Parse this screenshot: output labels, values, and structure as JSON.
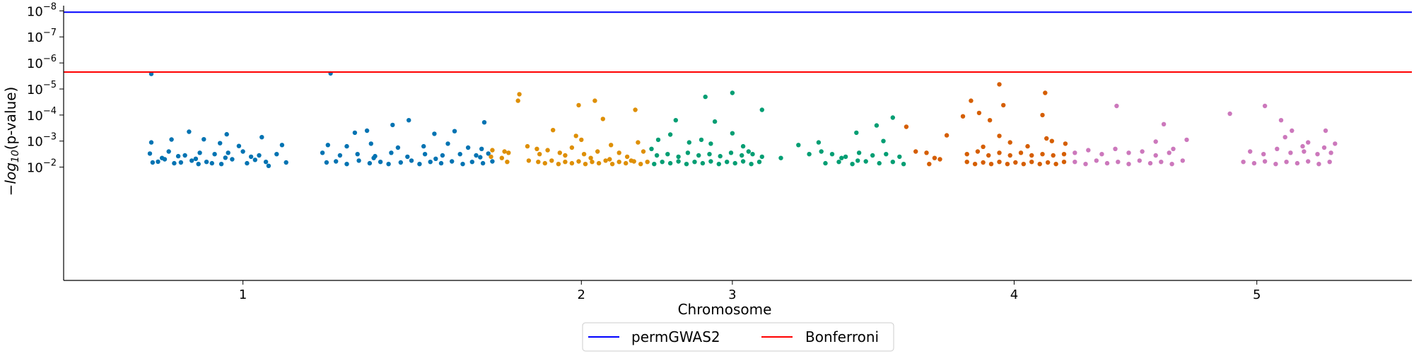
{
  "chart_data": {
    "type": "scatter",
    "title": "",
    "xlabel": "Chromosome",
    "ylabel_prefix": "−",
    "ylabel_log": "log",
    "ylabel_sub": "10",
    "ylabel_suffix": "(p-value)",
    "ylabel": "−log10(p-value)",
    "ylim": [
      -2.35,
      8.2
    ],
    "xlim": [
      0,
      100
    ],
    "x_ticks": [
      {
        "label": "1",
        "value": 13.3
      },
      {
        "label": "2",
        "value": 38.4
      },
      {
        "label": "3",
        "value": 49.6
      },
      {
        "label": "4",
        "value": 70.5
      },
      {
        "label": "5",
        "value": 88.5
      }
    ],
    "y_ticks": [
      {
        "value": 2,
        "base": "10",
        "exp": "−2"
      },
      {
        "value": 3,
        "base": "10",
        "exp": "−3"
      },
      {
        "value": 4,
        "base": "10",
        "exp": "−4"
      },
      {
        "value": 5,
        "base": "10",
        "exp": "−5"
      },
      {
        "value": 6,
        "base": "10",
        "exp": "−6"
      },
      {
        "value": 7,
        "base": "10",
        "exp": "−7"
      },
      {
        "value": 8,
        "base": "10",
        "exp": "−8"
      }
    ],
    "thresholds": [
      {
        "name": "permGWAS2",
        "value": 7.95,
        "color": "#0000ff"
      },
      {
        "name": "Bonferroni",
        "value": 5.65,
        "color": "#ff0000"
      }
    ],
    "legend": {
      "placement": "bottom-center"
    },
    "colors": [
      "#0173b2",
      "#de8f05",
      "#029e73",
      "#d55e00",
      "#cc78bc"
    ],
    "series": [
      {
        "chromosome": "1",
        "color": "#0173b2",
        "points": [
          [
            6.5,
            5.58
          ],
          [
            9.3,
            3.36
          ],
          [
            12.1,
            3.26
          ],
          [
            15.2,
            2.05
          ],
          [
            6.5,
            2.95
          ],
          [
            8.0,
            3.06
          ],
          [
            10.4,
            3.07
          ],
          [
            11.6,
            2.92
          ],
          [
            13.0,
            2.81
          ],
          [
            14.7,
            3.15
          ],
          [
            16.2,
            2.85
          ],
          [
            6.4,
            2.52
          ],
          [
            7.8,
            2.6
          ],
          [
            9.0,
            2.45
          ],
          [
            10.1,
            2.55
          ],
          [
            11.2,
            2.5
          ],
          [
            12.2,
            2.55
          ],
          [
            13.3,
            2.6
          ],
          [
            14.5,
            2.45
          ],
          [
            15.8,
            2.5
          ],
          [
            6.6,
            2.18
          ],
          [
            7.0,
            2.21
          ],
          [
            7.5,
            2.3
          ],
          [
            8.2,
            2.15
          ],
          [
            8.7,
            2.18
          ],
          [
            9.5,
            2.25
          ],
          [
            10.0,
            2.12
          ],
          [
            10.6,
            2.2
          ],
          [
            11.0,
            2.15
          ],
          [
            11.7,
            2.12
          ],
          [
            12.5,
            2.3
          ],
          [
            13.6,
            2.15
          ],
          [
            14.2,
            2.28
          ],
          [
            15.0,
            2.2
          ],
          [
            16.5,
            2.18
          ],
          [
            7.3,
            2.35
          ],
          [
            8.5,
            2.42
          ],
          [
            9.8,
            2.32
          ],
          [
            12.0,
            2.36
          ],
          [
            13.9,
            2.4
          ],
          [
            19.8,
            5.6
          ],
          [
            21.6,
            3.32
          ],
          [
            22.5,
            3.4
          ],
          [
            24.4,
            3.62
          ],
          [
            25.6,
            3.8
          ],
          [
            27.5,
            3.28
          ],
          [
            29.0,
            3.38
          ],
          [
            31.2,
            3.72
          ],
          [
            19.6,
            2.85
          ],
          [
            21.0,
            2.8
          ],
          [
            22.8,
            2.9
          ],
          [
            24.8,
            2.75
          ],
          [
            26.7,
            2.8
          ],
          [
            28.5,
            2.9
          ],
          [
            30.0,
            2.75
          ],
          [
            31.0,
            2.7
          ],
          [
            19.2,
            2.55
          ],
          [
            20.5,
            2.45
          ],
          [
            21.8,
            2.5
          ],
          [
            23.1,
            2.42
          ],
          [
            24.3,
            2.55
          ],
          [
            25.5,
            2.4
          ],
          [
            26.8,
            2.5
          ],
          [
            28.1,
            2.45
          ],
          [
            29.4,
            2.5
          ],
          [
            30.6,
            2.45
          ],
          [
            31.5,
            2.52
          ],
          [
            19.5,
            2.18
          ],
          [
            20.2,
            2.22
          ],
          [
            21.0,
            2.12
          ],
          [
            21.9,
            2.25
          ],
          [
            22.7,
            2.15
          ],
          [
            23.5,
            2.2
          ],
          [
            24.1,
            2.12
          ],
          [
            25.0,
            2.18
          ],
          [
            25.8,
            2.25
          ],
          [
            26.4,
            2.12
          ],
          [
            27.2,
            2.2
          ],
          [
            28.0,
            2.15
          ],
          [
            28.8,
            2.22
          ],
          [
            29.6,
            2.12
          ],
          [
            30.3,
            2.2
          ],
          [
            31.1,
            2.15
          ],
          [
            31.8,
            2.22
          ],
          [
            23.0,
            2.35
          ],
          [
            27.6,
            2.32
          ],
          [
            30.9,
            2.38
          ]
        ]
      },
      {
        "chromosome": "2",
        "color": "#de8f05",
        "points": [
          [
            33.8,
            4.8
          ],
          [
            38.2,
            4.38
          ],
          [
            31.8,
            2.65
          ],
          [
            32.5,
            2.35
          ],
          [
            32.9,
            2.2
          ],
          [
            32.7,
            2.6
          ],
          [
            31.7,
            2.4
          ],
          [
            33.0,
            2.55
          ],
          [
            33.7,
            4.55
          ],
          [
            34.4,
            2.8
          ],
          [
            34.5,
            2.25
          ],
          [
            35.1,
            2.7
          ],
          [
            35.3,
            2.5
          ],
          [
            35.9,
            2.65
          ],
          [
            36.3,
            3.42
          ],
          [
            36.8,
            2.55
          ],
          [
            37.2,
            2.45
          ],
          [
            37.7,
            2.75
          ],
          [
            38.0,
            3.2
          ],
          [
            38.6,
            2.5
          ],
          [
            39.1,
            2.35
          ],
          [
            39.6,
            2.6
          ],
          [
            40.0,
            3.85
          ],
          [
            40.5,
            2.3
          ],
          [
            41.2,
            2.55
          ],
          [
            41.8,
            2.4
          ],
          [
            42.4,
            4.2
          ],
          [
            42.1,
            2.25
          ],
          [
            43.0,
            2.6
          ],
          [
            35.2,
            2.2
          ],
          [
            35.7,
            2.15
          ],
          [
            36.2,
            2.25
          ],
          [
            36.7,
            2.12
          ],
          [
            37.2,
            2.2
          ],
          [
            37.7,
            2.15
          ],
          [
            38.2,
            2.22
          ],
          [
            38.7,
            2.12
          ],
          [
            39.2,
            2.2
          ],
          [
            39.7,
            2.15
          ],
          [
            40.2,
            2.25
          ],
          [
            40.7,
            2.12
          ],
          [
            41.2,
            2.2
          ],
          [
            41.7,
            2.15
          ],
          [
            42.3,
            2.22
          ],
          [
            42.8,
            2.12
          ],
          [
            43.3,
            2.2
          ],
          [
            38.4,
            3.05
          ],
          [
            39.4,
            4.55
          ],
          [
            40.6,
            2.85
          ],
          [
            42.6,
            2.95
          ]
        ]
      },
      {
        "chromosome": "3",
        "color": "#029e73",
        "points": [
          [
            47.6,
            4.7
          ],
          [
            49.6,
            4.85
          ],
          [
            51.8,
            4.2
          ],
          [
            45.4,
            3.8
          ],
          [
            48.3,
            3.75
          ],
          [
            43.6,
            2.7
          ],
          [
            44.1,
            3.05
          ],
          [
            45.0,
            3.25
          ],
          [
            46.4,
            2.95
          ],
          [
            47.3,
            3.05
          ],
          [
            48.0,
            2.9
          ],
          [
            49.6,
            3.3
          ],
          [
            50.4,
            2.8
          ],
          [
            50.8,
            2.6
          ],
          [
            44.0,
            2.45
          ],
          [
            44.8,
            2.5
          ],
          [
            45.6,
            2.4
          ],
          [
            46.3,
            2.55
          ],
          [
            47.1,
            2.45
          ],
          [
            47.9,
            2.5
          ],
          [
            48.7,
            2.42
          ],
          [
            49.5,
            2.55
          ],
          [
            50.3,
            2.45
          ],
          [
            51.1,
            2.5
          ],
          [
            51.8,
            2.4
          ],
          [
            43.8,
            2.12
          ],
          [
            44.4,
            2.2
          ],
          [
            45.0,
            2.15
          ],
          [
            45.6,
            2.22
          ],
          [
            46.2,
            2.12
          ],
          [
            46.8,
            2.2
          ],
          [
            47.4,
            2.15
          ],
          [
            48.0,
            2.22
          ],
          [
            48.6,
            2.12
          ],
          [
            49.2,
            2.2
          ],
          [
            49.8,
            2.15
          ],
          [
            50.4,
            2.22
          ],
          [
            51.0,
            2.12
          ],
          [
            51.6,
            2.2
          ],
          [
            54.5,
            2.85
          ],
          [
            56.2,
            2.6
          ],
          [
            57.7,
            2.35
          ],
          [
            58.8,
            3.32
          ],
          [
            60.3,
            3.6
          ],
          [
            61.5,
            3.9
          ],
          [
            60.8,
            3.0
          ],
          [
            55.3,
            2.5
          ],
          [
            56.0,
            2.95
          ],
          [
            57.0,
            2.5
          ],
          [
            58.0,
            2.4
          ],
          [
            59.0,
            2.55
          ],
          [
            60.0,
            2.45
          ],
          [
            61.0,
            2.5
          ],
          [
            62.0,
            2.4
          ],
          [
            56.5,
            2.15
          ],
          [
            57.5,
            2.2
          ],
          [
            58.5,
            2.12
          ],
          [
            59.5,
            2.22
          ],
          [
            60.5,
            2.15
          ],
          [
            61.5,
            2.2
          ],
          [
            62.3,
            2.12
          ],
          [
            58.9,
            2.25
          ],
          [
            53.2,
            2.35
          ]
        ]
      },
      {
        "chromosome": "4",
        "color": "#d55e00",
        "points": [
          [
            69.4,
            5.18
          ],
          [
            69.7,
            4.38
          ],
          [
            72.8,
            4.85
          ],
          [
            67.3,
            4.55
          ],
          [
            67.9,
            4.08
          ],
          [
            66.7,
            3.95
          ],
          [
            72.6,
            4.0
          ],
          [
            68.7,
            3.8
          ],
          [
            62.5,
            3.55
          ],
          [
            65.5,
            3.22
          ],
          [
            68.2,
            2.78
          ],
          [
            69.4,
            3.2
          ],
          [
            70.2,
            2.95
          ],
          [
            71.5,
            2.8
          ],
          [
            72.9,
            3.1
          ],
          [
            73.3,
            3.0
          ],
          [
            74.3,
            2.9
          ],
          [
            67.0,
            2.5
          ],
          [
            67.8,
            2.6
          ],
          [
            68.6,
            2.45
          ],
          [
            69.4,
            2.55
          ],
          [
            70.2,
            2.45
          ],
          [
            71.0,
            2.55
          ],
          [
            71.8,
            2.45
          ],
          [
            72.6,
            2.5
          ],
          [
            73.4,
            2.45
          ],
          [
            74.2,
            2.5
          ],
          [
            67.0,
            2.2
          ],
          [
            67.6,
            2.12
          ],
          [
            68.2,
            2.18
          ],
          [
            68.8,
            2.12
          ],
          [
            69.4,
            2.2
          ],
          [
            70.0,
            2.12
          ],
          [
            70.6,
            2.18
          ],
          [
            71.2,
            2.12
          ],
          [
            71.8,
            2.2
          ],
          [
            72.4,
            2.12
          ],
          [
            73.0,
            2.18
          ],
          [
            73.6,
            2.12
          ],
          [
            74.2,
            2.2
          ],
          [
            63.2,
            2.6
          ],
          [
            64.0,
            2.55
          ],
          [
            64.2,
            2.12
          ],
          [
            65.0,
            2.3
          ],
          [
            64.6,
            2.35
          ]
        ]
      },
      {
        "chromosome": "5",
        "color": "#cc78bc",
        "points": [
          [
            78.1,
            4.35
          ],
          [
            86.5,
            4.05
          ],
          [
            89.1,
            4.35
          ],
          [
            90.3,
            3.8
          ],
          [
            81.6,
            3.65
          ],
          [
            91.1,
            3.4
          ],
          [
            81.0,
            2.98
          ],
          [
            82.3,
            2.7
          ],
          [
            83.3,
            3.05
          ],
          [
            92.3,
            2.95
          ],
          [
            93.5,
            2.75
          ],
          [
            75.0,
            2.55
          ],
          [
            76.0,
            2.65
          ],
          [
            77.0,
            2.5
          ],
          [
            78.0,
            2.7
          ],
          [
            79.0,
            2.55
          ],
          [
            80.0,
            2.6
          ],
          [
            81.0,
            2.45
          ],
          [
            82.0,
            2.55
          ],
          [
            75.0,
            2.2
          ],
          [
            75.8,
            2.12
          ],
          [
            76.6,
            2.25
          ],
          [
            77.4,
            2.15
          ],
          [
            78.2,
            2.2
          ],
          [
            79.0,
            2.12
          ],
          [
            79.8,
            2.25
          ],
          [
            80.6,
            2.15
          ],
          [
            81.4,
            2.2
          ],
          [
            82.2,
            2.12
          ],
          [
            83.0,
            2.25
          ],
          [
            87.5,
            2.2
          ],
          [
            88.3,
            2.15
          ],
          [
            89.1,
            2.22
          ],
          [
            89.9,
            2.12
          ],
          [
            90.7,
            2.2
          ],
          [
            91.5,
            2.15
          ],
          [
            92.3,
            2.22
          ],
          [
            93.1,
            2.12
          ],
          [
            93.9,
            2.2
          ],
          [
            88.0,
            2.6
          ],
          [
            89.0,
            2.5
          ],
          [
            90.0,
            2.7
          ],
          [
            91.0,
            2.55
          ],
          [
            92.0,
            2.6
          ],
          [
            93.0,
            2.5
          ],
          [
            94.0,
            2.55
          ],
          [
            90.6,
            3.15
          ],
          [
            91.9,
            2.8
          ],
          [
            93.6,
            3.4
          ],
          [
            94.3,
            2.9
          ]
        ]
      }
    ]
  }
}
